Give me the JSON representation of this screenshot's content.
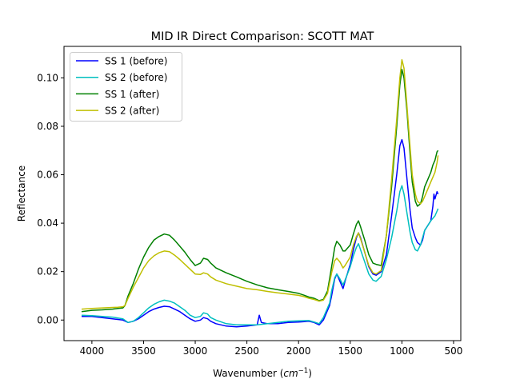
{
  "chart_data": {
    "type": "line",
    "title": "MID IR Direct Comparison: SCOTT MAT",
    "xlabel_main": "Wavenumber (",
    "xlabel_unit": "cm",
    "xlabel_exp": "−1",
    "xlabel_close": ")",
    "ylabel": "Reflectance",
    "x_reversed": true,
    "xlim": [
      4270,
      430
    ],
    "ylim": [
      -0.0085,
      0.113
    ],
    "xticks": [
      4000,
      3500,
      3000,
      2500,
      2000,
      1500,
      1000,
      500
    ],
    "xtick_labels": [
      "4000",
      "3500",
      "3000",
      "2500",
      "2000",
      "1500",
      "1000",
      "500"
    ],
    "yticks": [
      0.0,
      0.02,
      0.04,
      0.06,
      0.08,
      0.1
    ],
    "ytick_labels": [
      "0.00",
      "0.02",
      "0.04",
      "0.06",
      "0.08",
      "0.10"
    ],
    "grid": false,
    "legend_position": "upper-left",
    "series": [
      {
        "name": "SS 1 (before)",
        "color": "#0000ff",
        "points": [
          [
            4100,
            0.0015
          ],
          [
            4000,
            0.0015
          ],
          [
            3900,
            0.001
          ],
          [
            3800,
            0.0005
          ],
          [
            3700,
            0.0
          ],
          [
            3650,
            -0.001
          ],
          [
            3600,
            -0.0005
          ],
          [
            3550,
            0.0005
          ],
          [
            3500,
            0.002
          ],
          [
            3450,
            0.0035
          ],
          [
            3400,
            0.0045
          ],
          [
            3350,
            0.0052
          ],
          [
            3300,
            0.0057
          ],
          [
            3250,
            0.0055
          ],
          [
            3200,
            0.0045
          ],
          [
            3150,
            0.0035
          ],
          [
            3100,
            0.002
          ],
          [
            3050,
            0.0005
          ],
          [
            3000,
            -0.0005
          ],
          [
            2950,
            0.0
          ],
          [
            2920,
            0.001
          ],
          [
            2880,
            0.0005
          ],
          [
            2850,
            -0.0005
          ],
          [
            2800,
            -0.0015
          ],
          [
            2700,
            -0.0025
          ],
          [
            2600,
            -0.0028
          ],
          [
            2500,
            -0.0025
          ],
          [
            2400,
            -0.002
          ],
          [
            2380,
            0.002
          ],
          [
            2360,
            -0.001
          ],
          [
            2300,
            -0.0015
          ],
          [
            2200,
            -0.0015
          ],
          [
            2100,
            -0.001
          ],
          [
            2000,
            -0.0008
          ],
          [
            1900,
            -0.0005
          ],
          [
            1850,
            -0.001
          ],
          [
            1800,
            -0.002
          ],
          [
            1760,
            0.0
          ],
          [
            1700,
            0.006
          ],
          [
            1680,
            0.01
          ],
          [
            1650,
            0.017
          ],
          [
            1630,
            0.019
          ],
          [
            1600,
            0.016
          ],
          [
            1570,
            0.013
          ],
          [
            1550,
            0.016
          ],
          [
            1500,
            0.023
          ],
          [
            1470,
            0.029
          ],
          [
            1440,
            0.034
          ],
          [
            1420,
            0.036
          ],
          [
            1400,
            0.034
          ],
          [
            1360,
            0.028
          ],
          [
            1320,
            0.022
          ],
          [
            1280,
            0.019
          ],
          [
            1250,
            0.0185
          ],
          [
            1200,
            0.02
          ],
          [
            1150,
            0.027
          ],
          [
            1100,
            0.043
          ],
          [
            1050,
            0.06
          ],
          [
            1020,
            0.072
          ],
          [
            1000,
            0.0745
          ],
          [
            980,
            0.071
          ],
          [
            950,
            0.058
          ],
          [
            920,
            0.045
          ],
          [
            900,
            0.038
          ],
          [
            870,
            0.034
          ],
          [
            850,
            0.032
          ],
          [
            820,
            0.031
          ],
          [
            800,
            0.033
          ],
          [
            780,
            0.037
          ],
          [
            750,
            0.039
          ],
          [
            720,
            0.041
          ],
          [
            700,
            0.047
          ],
          [
            690,
            0.052
          ],
          [
            680,
            0.05
          ],
          [
            660,
            0.053
          ],
          [
            650,
            0.052
          ]
        ]
      },
      {
        "name": "SS 2 (before)",
        "color": "#00bfbf",
        "points": [
          [
            4100,
            0.002
          ],
          [
            4000,
            0.0018
          ],
          [
            3900,
            0.0015
          ],
          [
            3800,
            0.0012
          ],
          [
            3700,
            0.0005
          ],
          [
            3650,
            -0.001
          ],
          [
            3600,
            -0.0005
          ],
          [
            3550,
            0.001
          ],
          [
            3500,
            0.003
          ],
          [
            3450,
            0.005
          ],
          [
            3400,
            0.0065
          ],
          [
            3350,
            0.0075
          ],
          [
            3300,
            0.0082
          ],
          [
            3250,
            0.0078
          ],
          [
            3200,
            0.007
          ],
          [
            3150,
            0.0055
          ],
          [
            3100,
            0.004
          ],
          [
            3050,
            0.002
          ],
          [
            3000,
            0.001
          ],
          [
            2950,
            0.0015
          ],
          [
            2920,
            0.003
          ],
          [
            2880,
            0.0025
          ],
          [
            2850,
            0.001
          ],
          [
            2800,
            0.0
          ],
          [
            2700,
            -0.0015
          ],
          [
            2600,
            -0.002
          ],
          [
            2500,
            -0.002
          ],
          [
            2400,
            -0.002
          ],
          [
            2300,
            -0.0015
          ],
          [
            2200,
            -0.001
          ],
          [
            2100,
            -0.0005
          ],
          [
            2000,
            -0.0003
          ],
          [
            1900,
            -0.0002
          ],
          [
            1850,
            -0.0008
          ],
          [
            1800,
            -0.0015
          ],
          [
            1760,
            0.001
          ],
          [
            1700,
            0.007
          ],
          [
            1680,
            0.012
          ],
          [
            1650,
            0.0175
          ],
          [
            1630,
            0.019
          ],
          [
            1600,
            0.017
          ],
          [
            1570,
            0.0145
          ],
          [
            1550,
            0.0165
          ],
          [
            1500,
            0.022
          ],
          [
            1470,
            0.0265
          ],
          [
            1440,
            0.03
          ],
          [
            1420,
            0.0315
          ],
          [
            1400,
            0.029
          ],
          [
            1360,
            0.024
          ],
          [
            1320,
            0.019
          ],
          [
            1280,
            0.0165
          ],
          [
            1250,
            0.016
          ],
          [
            1200,
            0.018
          ],
          [
            1150,
            0.025
          ],
          [
            1100,
            0.034
          ],
          [
            1050,
            0.045
          ],
          [
            1020,
            0.053
          ],
          [
            1000,
            0.0555
          ],
          [
            980,
            0.052
          ],
          [
            950,
            0.044
          ],
          [
            920,
            0.036
          ],
          [
            900,
            0.032
          ],
          [
            870,
            0.029
          ],
          [
            850,
            0.0285
          ],
          [
            820,
            0.031
          ],
          [
            800,
            0.034
          ],
          [
            780,
            0.037
          ],
          [
            750,
            0.039
          ],
          [
            720,
            0.041
          ],
          [
            700,
            0.042
          ],
          [
            680,
            0.043
          ],
          [
            660,
            0.045
          ],
          [
            650,
            0.046
          ]
        ]
      },
      {
        "name": "SS 1 (after)",
        "color": "#008000",
        "points": [
          [
            4100,
            0.0035
          ],
          [
            4000,
            0.004
          ],
          [
            3900,
            0.0042
          ],
          [
            3800,
            0.0045
          ],
          [
            3750,
            0.0048
          ],
          [
            3700,
            0.005
          ],
          [
            3680,
            0.006
          ],
          [
            3650,
            0.01
          ],
          [
            3600,
            0.015
          ],
          [
            3550,
            0.021
          ],
          [
            3500,
            0.026
          ],
          [
            3450,
            0.03
          ],
          [
            3400,
            0.033
          ],
          [
            3350,
            0.0345
          ],
          [
            3300,
            0.0355
          ],
          [
            3250,
            0.035
          ],
          [
            3200,
            0.033
          ],
          [
            3150,
            0.0305
          ],
          [
            3100,
            0.028
          ],
          [
            3050,
            0.025
          ],
          [
            3000,
            0.0225
          ],
          [
            2950,
            0.0235
          ],
          [
            2920,
            0.0255
          ],
          [
            2880,
            0.025
          ],
          [
            2850,
            0.0235
          ],
          [
            2800,
            0.0215
          ],
          [
            2700,
            0.0195
          ],
          [
            2600,
            0.0178
          ],
          [
            2500,
            0.016
          ],
          [
            2400,
            0.0145
          ],
          [
            2300,
            0.0133
          ],
          [
            2200,
            0.0125
          ],
          [
            2100,
            0.0118
          ],
          [
            2000,
            0.011
          ],
          [
            1950,
            0.0103
          ],
          [
            1900,
            0.0095
          ],
          [
            1850,
            0.009
          ],
          [
            1800,
            0.008
          ],
          [
            1760,
            0.0085
          ],
          [
            1720,
            0.012
          ],
          [
            1680,
            0.022
          ],
          [
            1650,
            0.03
          ],
          [
            1630,
            0.0325
          ],
          [
            1600,
            0.031
          ],
          [
            1570,
            0.0285
          ],
          [
            1550,
            0.0285
          ],
          [
            1500,
            0.031
          ],
          [
            1470,
            0.0355
          ],
          [
            1440,
            0.0395
          ],
          [
            1420,
            0.041
          ],
          [
            1400,
            0.0385
          ],
          [
            1360,
            0.033
          ],
          [
            1320,
            0.027
          ],
          [
            1280,
            0.0235
          ],
          [
            1250,
            0.023
          ],
          [
            1200,
            0.0225
          ],
          [
            1150,
            0.035
          ],
          [
            1100,
            0.055
          ],
          [
            1050,
            0.08
          ],
          [
            1020,
            0.097
          ],
          [
            1000,
            0.1035
          ],
          [
            980,
            0.1
          ],
          [
            950,
            0.086
          ],
          [
            920,
            0.068
          ],
          [
            900,
            0.057
          ],
          [
            870,
            0.049
          ],
          [
            850,
            0.047
          ],
          [
            820,
            0.048
          ],
          [
            800,
            0.051
          ],
          [
            780,
            0.055
          ],
          [
            750,
            0.058
          ],
          [
            720,
            0.061
          ],
          [
            700,
            0.064
          ],
          [
            680,
            0.066
          ],
          [
            660,
            0.0695
          ],
          [
            650,
            0.07
          ]
        ]
      },
      {
        "name": "SS 2 (after)",
        "color": "#bfbf00",
        "points": [
          [
            4100,
            0.0045
          ],
          [
            4000,
            0.0048
          ],
          [
            3900,
            0.005
          ],
          [
            3800,
            0.0052
          ],
          [
            3750,
            0.0053
          ],
          [
            3700,
            0.0055
          ],
          [
            3680,
            0.006
          ],
          [
            3650,
            0.009
          ],
          [
            3600,
            0.0135
          ],
          [
            3550,
            0.0175
          ],
          [
            3500,
            0.0215
          ],
          [
            3450,
            0.0245
          ],
          [
            3400,
            0.0265
          ],
          [
            3350,
            0.0278
          ],
          [
            3300,
            0.0285
          ],
          [
            3250,
            0.0282
          ],
          [
            3200,
            0.0268
          ],
          [
            3150,
            0.025
          ],
          [
            3100,
            0.023
          ],
          [
            3050,
            0.021
          ],
          [
            3000,
            0.019
          ],
          [
            2950,
            0.0188
          ],
          [
            2920,
            0.0195
          ],
          [
            2880,
            0.019
          ],
          [
            2850,
            0.0178
          ],
          [
            2800,
            0.0165
          ],
          [
            2700,
            0.015
          ],
          [
            2600,
            0.014
          ],
          [
            2500,
            0.013
          ],
          [
            2400,
            0.0125
          ],
          [
            2300,
            0.0118
          ],
          [
            2200,
            0.0112
          ],
          [
            2100,
            0.0107
          ],
          [
            2000,
            0.0102
          ],
          [
            1950,
            0.0097
          ],
          [
            1900,
            0.009
          ],
          [
            1850,
            0.0085
          ],
          [
            1800,
            0.0078
          ],
          [
            1760,
            0.0082
          ],
          [
            1720,
            0.011
          ],
          [
            1680,
            0.0195
          ],
          [
            1650,
            0.0245
          ],
          [
            1630,
            0.0255
          ],
          [
            1600,
            0.024
          ],
          [
            1570,
            0.0215
          ],
          [
            1550,
            0.0225
          ],
          [
            1500,
            0.026
          ],
          [
            1470,
            0.031
          ],
          [
            1440,
            0.0345
          ],
          [
            1420,
            0.036
          ],
          [
            1400,
            0.0335
          ],
          [
            1360,
            0.028
          ],
          [
            1320,
            0.0225
          ],
          [
            1280,
            0.0195
          ],
          [
            1250,
            0.019
          ],
          [
            1200,
            0.0205
          ],
          [
            1150,
            0.035
          ],
          [
            1100,
            0.058
          ],
          [
            1050,
            0.083
          ],
          [
            1020,
            0.1
          ],
          [
            1000,
            0.1075
          ],
          [
            980,
            0.104
          ],
          [
            950,
            0.088
          ],
          [
            920,
            0.071
          ],
          [
            900,
            0.06
          ],
          [
            870,
            0.052
          ],
          [
            850,
            0.049
          ],
          [
            820,
            0.048
          ],
          [
            800,
            0.049
          ],
          [
            780,
            0.051
          ],
          [
            750,
            0.054
          ],
          [
            720,
            0.057
          ],
          [
            700,
            0.059
          ],
          [
            680,
            0.061
          ],
          [
            660,
            0.065
          ],
          [
            650,
            0.068
          ]
        ]
      }
    ]
  }
}
